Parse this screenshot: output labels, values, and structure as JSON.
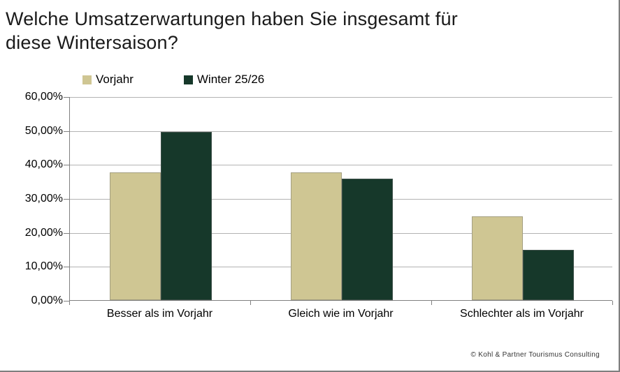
{
  "title": {
    "line1": "Welche Umsatzerwartungen haben Sie insgesamt für",
    "line2": "diese Wintersaison?"
  },
  "legend": {
    "items": [
      {
        "label": "Vorjahr"
      },
      {
        "label": "Winter 25/26"
      }
    ]
  },
  "footer": {
    "copyright": "© Kohl & Partner Tourismus Consulting"
  },
  "colors": {
    "series_vorjahr": "#cfc693",
    "series_winter": "#16382a",
    "gridline": "#b3b3b3",
    "axis": "#808080"
  },
  "chart_data": {
    "type": "bar",
    "title": "Welche Umsatzerwartungen haben Sie insgesamt für diese Wintersaison?",
    "categories": [
      "Besser als im Vorjahr",
      "Gleich wie im Vorjahr",
      "Schlechter als im Vorjahr"
    ],
    "series": [
      {
        "name": "Vorjahr",
        "color": "#cfc693",
        "values": [
          37.7,
          37.7,
          24.6
        ]
      },
      {
        "name": "Winter 25/26",
        "color": "#16382a",
        "values": [
          49.5,
          35.8,
          14.7
        ]
      }
    ],
    "xlabel": "",
    "ylabel": "",
    "ylim": [
      0,
      60
    ],
    "y_tick_step": 10,
    "y_tick_labels": [
      "0,00%",
      "10,00%",
      "20,00%",
      "30,00%",
      "40,00%",
      "50,00%",
      "60,00%"
    ],
    "grid": true,
    "legend_position": "top-left"
  }
}
